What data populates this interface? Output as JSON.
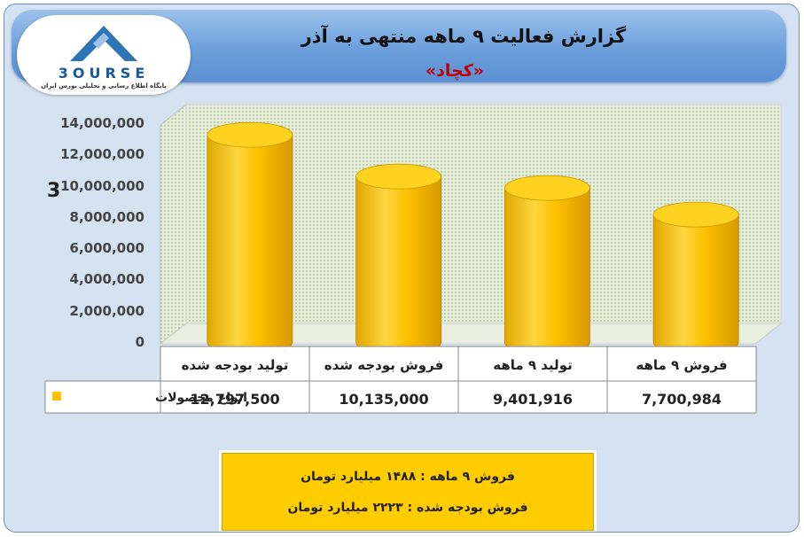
{
  "header": {
    "title": "گزارش فعالیت ۹ ماهه منتهی به آذر",
    "company": "«کچاد»"
  },
  "logo": {
    "word": "3OURSE",
    "subtitle": "پایگاه اطلاع رسانی و تحلیلی بورس ایران",
    "mark_color": "#2e75b6"
  },
  "axis_glyph": "3",
  "chart_data": {
    "type": "bar",
    "style": "3d-cylinder",
    "categories": [
      "تولید بودجه شده",
      "فروش بودجه شده",
      "تولید ۹ ماهه",
      "فروش ۹ ماهه"
    ],
    "series": [
      {
        "name": "انواع محصولات",
        "values": [
          12797500,
          10135000,
          9401916,
          7700984
        ],
        "color": "#ffc000"
      }
    ],
    "value_labels": [
      "12,797,500",
      "10,135,000",
      "9,401,916",
      "7,700,984"
    ],
    "ylim": [
      0,
      14000000
    ],
    "yticks": [
      0,
      2000000,
      4000000,
      6000000,
      8000000,
      10000000,
      12000000,
      14000000
    ],
    "ytick_labels": [
      "0",
      "2,000,000",
      "4,000,000",
      "6,000,000",
      "8,000,000",
      "10,000,000",
      "12,000,000",
      "14,000,000"
    ],
    "data_table": true,
    "legend_placement": "data-table"
  },
  "summary": {
    "line1": "فروش ۹ ماهه : ۱۴۸۸ میلیارد تومان",
    "line2": "فروش بودجه شده : ۲۲۲۳ میلیارد تومان"
  }
}
